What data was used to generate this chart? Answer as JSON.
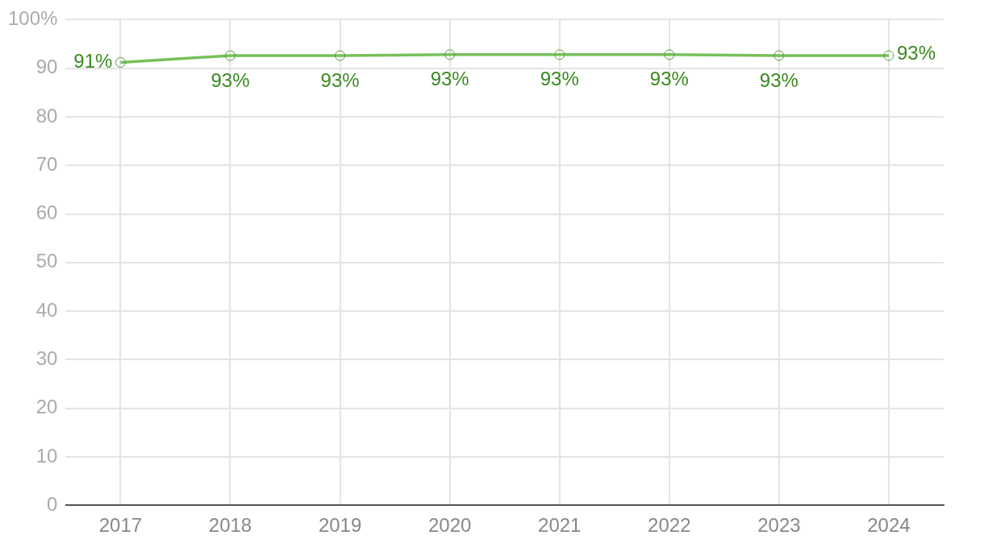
{
  "chart_data": {
    "type": "line",
    "categories": [
      "2017",
      "2018",
      "2019",
      "2020",
      "2021",
      "2022",
      "2023",
      "2024"
    ],
    "series": [
      {
        "color": "#77c05a",
        "values": [
          91.2,
          92.6,
          92.6,
          92.8,
          92.8,
          92.8,
          92.6,
          92.6
        ],
        "value_labels": [
          "91%",
          "93%",
          "93%",
          "93%",
          "93%",
          "93%",
          "93%",
          "93%"
        ]
      }
    ],
    "ylim": [
      0,
      100
    ],
    "yticks": [
      0,
      10,
      20,
      30,
      40,
      50,
      60,
      70,
      80,
      90,
      {
        "value": 100,
        "label": "100%"
      }
    ],
    "grid": true,
    "marker": "circle",
    "line_style": "solid"
  }
}
